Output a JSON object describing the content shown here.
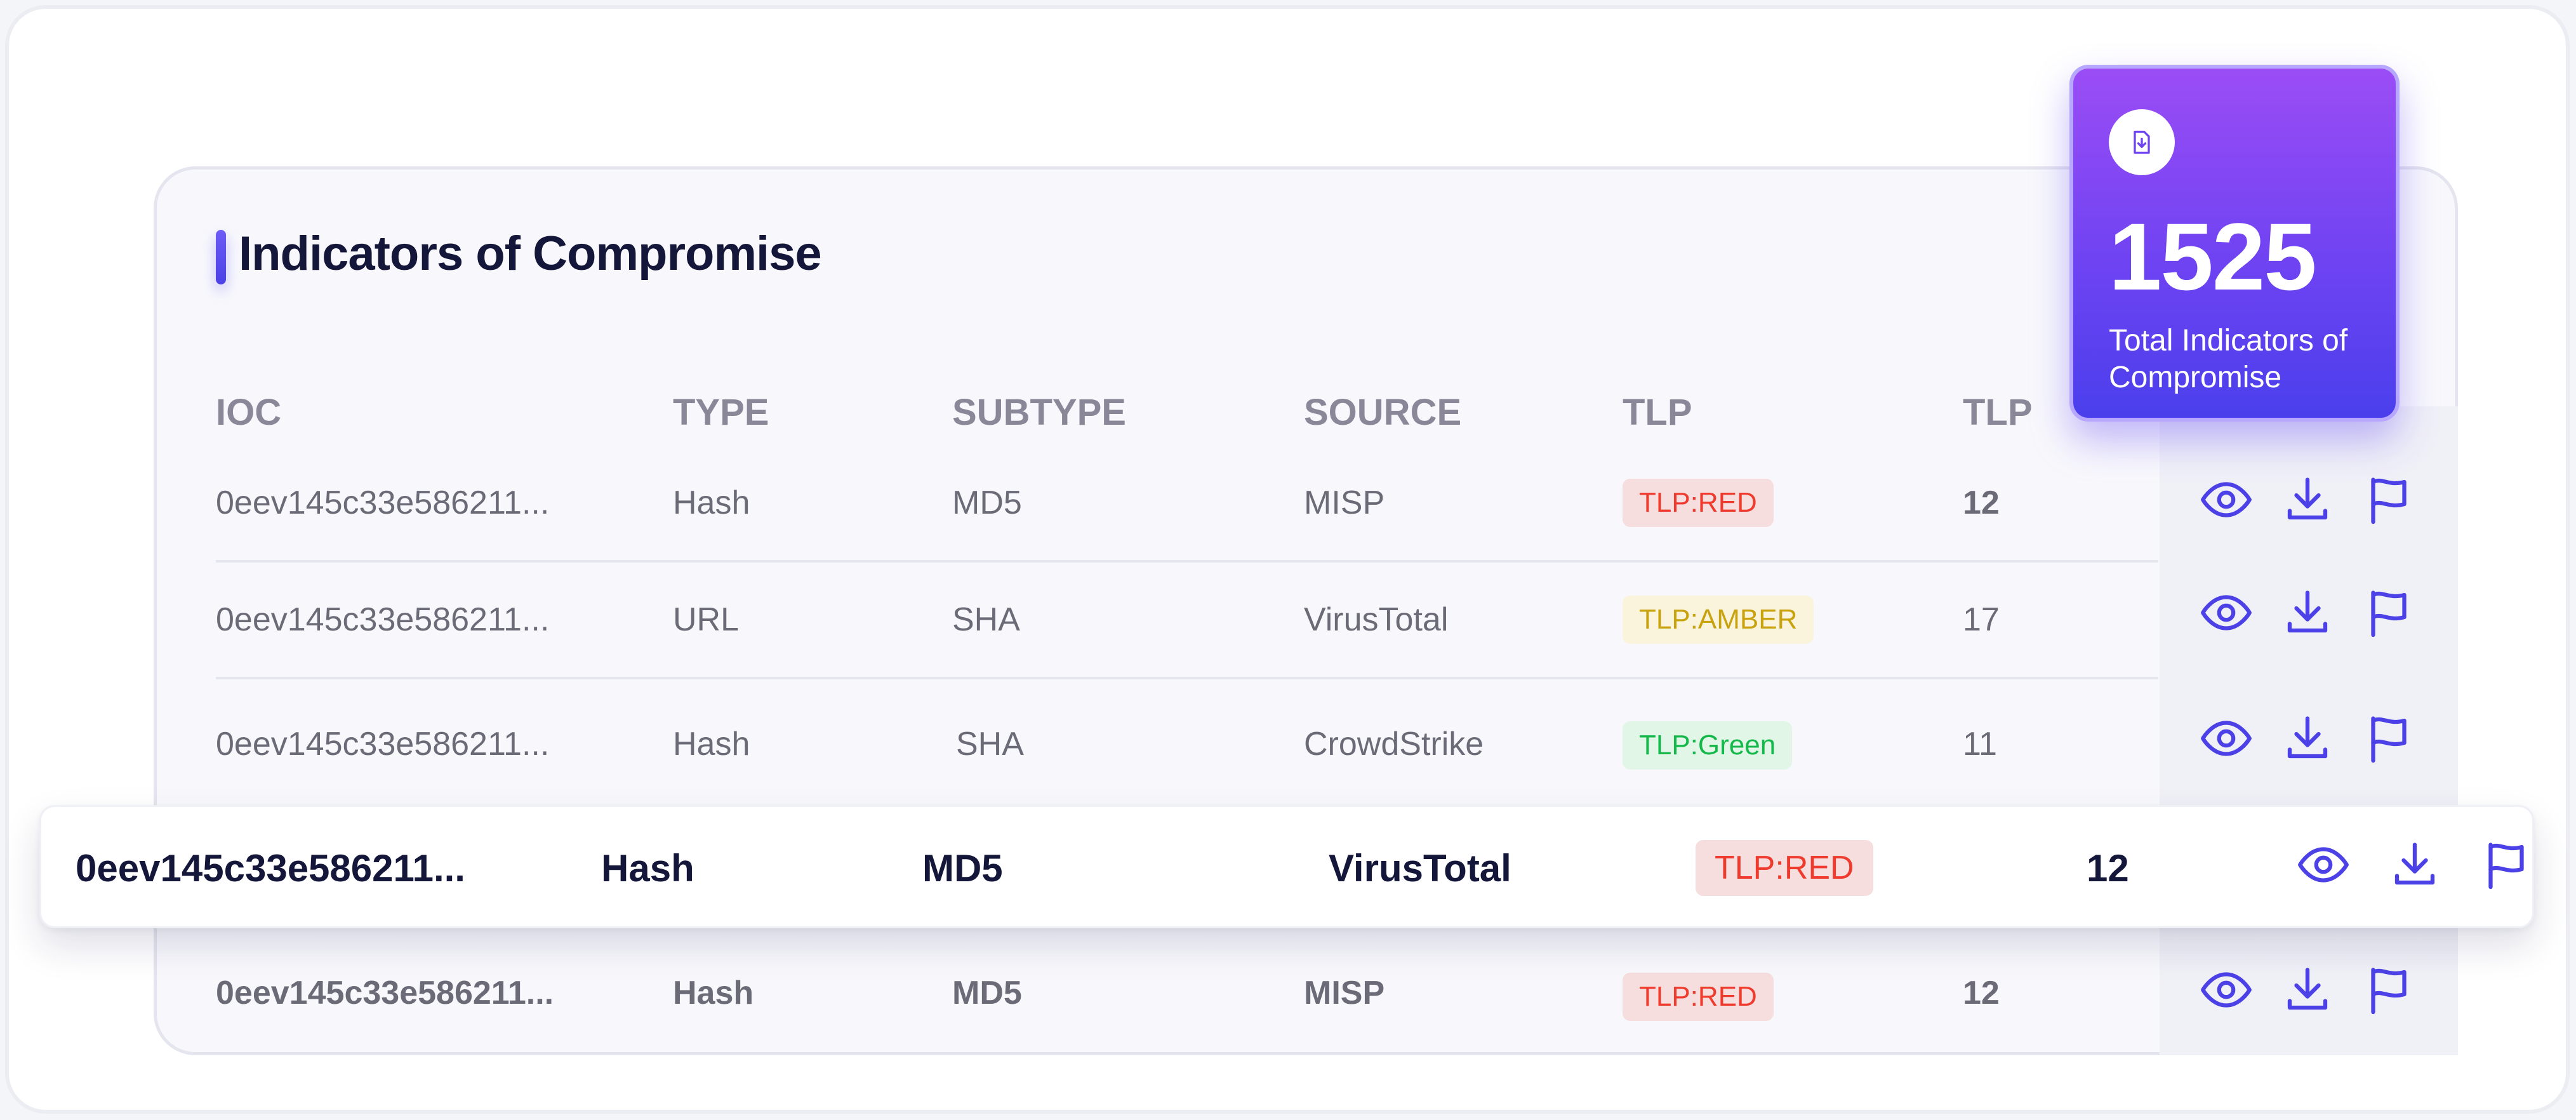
{
  "title": "Indicators of Compromise",
  "columns": [
    "IOC",
    "TYPE",
    "SUBTYPE",
    "SOURCE",
    "TLP",
    "TLP"
  ],
  "rows": [
    {
      "ioc": "0eev145c33e586211...",
      "type": "Hash",
      "subtype": "MD5",
      "source": "MISP",
      "tlp": "TLP:RED",
      "tlp_level": "red",
      "count": "12"
    },
    {
      "ioc": "0eev145c33e586211...",
      "type": "URL",
      "subtype": "SHA",
      "source": "VirusTotal",
      "tlp": "TLP:AMBER",
      "tlp_level": "amber",
      "count": "17"
    },
    {
      "ioc": "0eev145c33e586211...",
      "type": "Hash",
      "subtype": "SHA",
      "source": "CrowdStrike",
      "tlp": "TLP:Green",
      "tlp_level": "green",
      "count": "11"
    },
    {
      "ioc": "0eev145c33e586211...",
      "type": "Hash",
      "subtype": "MD5",
      "source": "VirusTotal",
      "tlp": "TLP:RED",
      "tlp_level": "red",
      "count": "12"
    },
    {
      "ioc": "0eev145c33e586211...",
      "type": "Hash",
      "subtype": "MD5",
      "source": "MISP",
      "tlp": "TLP:RED",
      "tlp_level": "red",
      "count": "12"
    }
  ],
  "row_actions": [
    "eye-icon",
    "download-icon",
    "flag-icon"
  ],
  "stat": {
    "value": "1525",
    "label": "Total Indicators of Compromise",
    "icon": "file-download-icon"
  },
  "colors": {
    "accent": "#4b41e6",
    "red": "#ef3b2d",
    "amber": "#c9a20f",
    "green": "#15b94b"
  }
}
